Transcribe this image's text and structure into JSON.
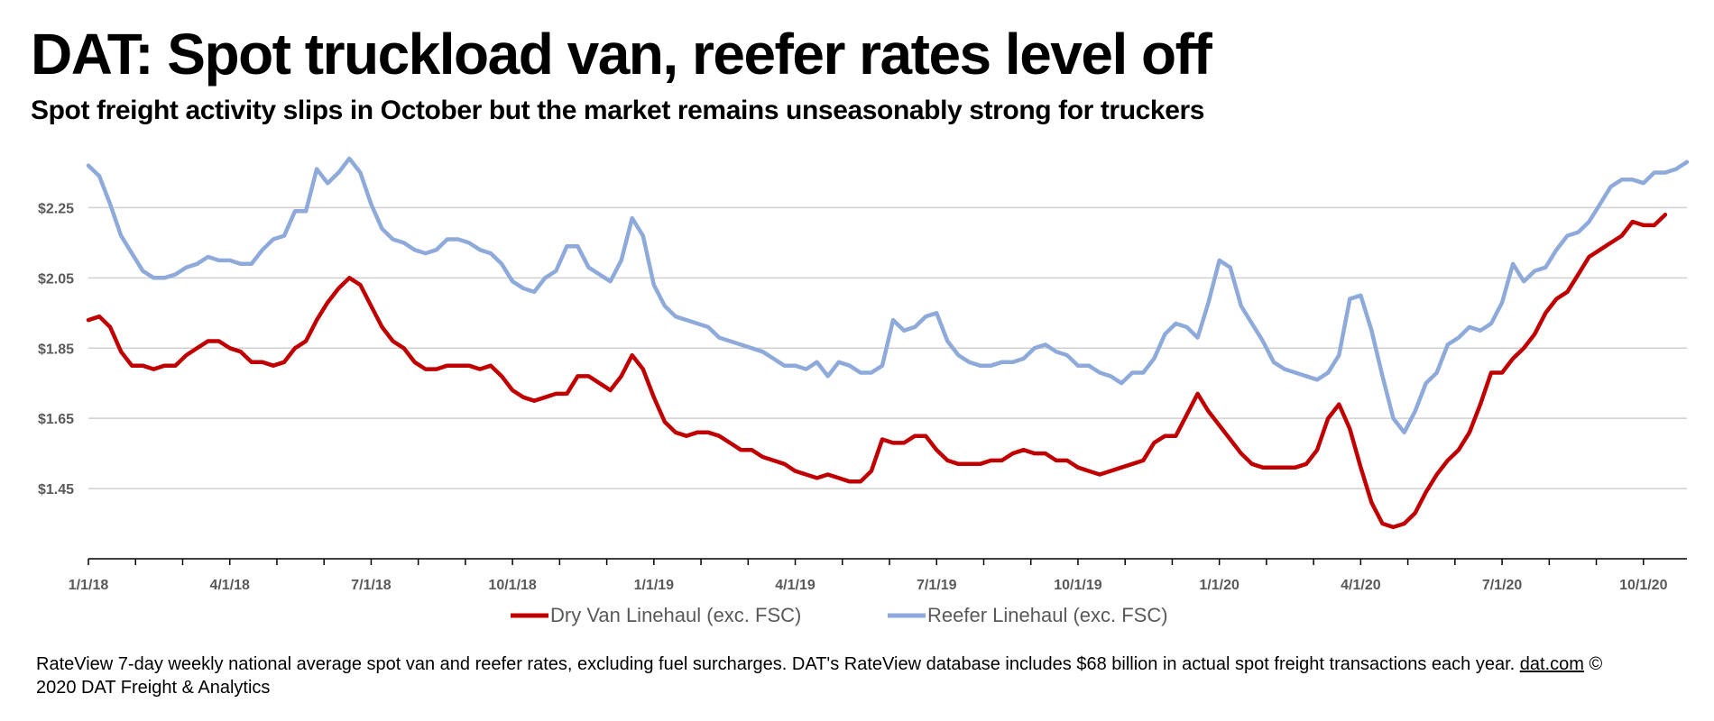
{
  "title": "DAT: Spot truckload van, reefer rates level off",
  "subtitle": "Spot freight activity slips in October but the market remains unseasonably strong for truckers",
  "footnote": {
    "text": "RateView 7-day weekly national average spot van and reefer rates, excluding fuel surcharges. DAT's RateView database includes $68 billion in actual spot freight transactions each year.",
    "link": "dat.com",
    "copyright": "© 2020 DAT Freight & Analytics"
  },
  "colors": {
    "dry_van": "#c00000",
    "reefer": "#8eaadb",
    "grid": "#d0d0d0",
    "axis": "#000000",
    "text": "#595959"
  },
  "chart_data": {
    "type": "line",
    "title": "DAT: Spot truckload van, reefer rates level off",
    "xlabel": "",
    "ylabel": "",
    "x_range": [
      0,
      147
    ],
    "ylim": [
      1.25,
      2.4
    ],
    "y_ticks": [
      "$1.45",
      "$1.65",
      "$1.85",
      "$2.05",
      "$2.25"
    ],
    "y_tick_values": [
      1.45,
      1.65,
      1.85,
      2.05,
      2.25
    ],
    "x_ticks": [
      "1/1/18",
      "4/1/18",
      "7/1/18",
      "10/1/18",
      "1/1/19",
      "4/1/19",
      "7/1/19",
      "10/1/19",
      "1/1/20",
      "4/1/20",
      "7/1/20",
      "10/1/20"
    ],
    "x_tick_weeks": [
      0,
      13,
      26,
      39,
      52,
      65,
      78,
      91,
      104,
      117,
      130,
      143
    ],
    "legend": "bottom-center",
    "series": [
      {
        "name": "Dry Van Linehaul (exc. FSC)",
        "color": "#c00000",
        "values": [
          1.93,
          1.94,
          1.91,
          1.84,
          1.8,
          1.8,
          1.79,
          1.8,
          1.8,
          1.83,
          1.85,
          1.87,
          1.87,
          1.85,
          1.84,
          1.81,
          1.81,
          1.8,
          1.81,
          1.85,
          1.87,
          1.93,
          1.98,
          2.02,
          2.05,
          2.03,
          1.97,
          1.91,
          1.87,
          1.85,
          1.81,
          1.79,
          1.79,
          1.8,
          1.8,
          1.8,
          1.79,
          1.8,
          1.77,
          1.73,
          1.71,
          1.7,
          1.71,
          1.72,
          1.72,
          1.77,
          1.77,
          1.75,
          1.73,
          1.77,
          1.83,
          1.79,
          1.71,
          1.64,
          1.61,
          1.6,
          1.61,
          1.61,
          1.6,
          1.58,
          1.56,
          1.56,
          1.54,
          1.53,
          1.52,
          1.5,
          1.49,
          1.48,
          1.49,
          1.48,
          1.47,
          1.47,
          1.5,
          1.59,
          1.58,
          1.58,
          1.6,
          1.6,
          1.56,
          1.53,
          1.52,
          1.52,
          1.52,
          1.53,
          1.53,
          1.55,
          1.56,
          1.55,
          1.55,
          1.53,
          1.53,
          1.51,
          1.5,
          1.49,
          1.5,
          1.51,
          1.52,
          1.53,
          1.58,
          1.6,
          1.6,
          1.66,
          1.72,
          1.67,
          1.63,
          1.59,
          1.55,
          1.52,
          1.51,
          1.51,
          1.51,
          1.51,
          1.52,
          1.56,
          1.65,
          1.69,
          1.62,
          1.51,
          1.41,
          1.35,
          1.34,
          1.35,
          1.38,
          1.44,
          1.49,
          1.53,
          1.56,
          1.61,
          1.69,
          1.78,
          1.78,
          1.82,
          1.85,
          1.89,
          1.95,
          1.99,
          2.01,
          2.06,
          2.11,
          2.13,
          2.15,
          2.17,
          2.21,
          2.2,
          2.2,
          2.23
        ]
      },
      {
        "name": "Reefer Linehaul (exc. FSC)",
        "color": "#8eaadb",
        "values": [
          2.37,
          2.34,
          2.26,
          2.17,
          2.12,
          2.07,
          2.05,
          2.05,
          2.06,
          2.08,
          2.09,
          2.11,
          2.1,
          2.1,
          2.09,
          2.09,
          2.13,
          2.16,
          2.17,
          2.24,
          2.24,
          2.36,
          2.32,
          2.35,
          2.39,
          2.35,
          2.26,
          2.19,
          2.16,
          2.15,
          2.13,
          2.12,
          2.13,
          2.16,
          2.16,
          2.15,
          2.13,
          2.12,
          2.09,
          2.04,
          2.02,
          2.01,
          2.05,
          2.07,
          2.14,
          2.14,
          2.08,
          2.06,
          2.04,
          2.1,
          2.22,
          2.17,
          2.03,
          1.97,
          1.94,
          1.93,
          1.92,
          1.91,
          1.88,
          1.87,
          1.86,
          1.85,
          1.84,
          1.82,
          1.8,
          1.8,
          1.79,
          1.81,
          1.77,
          1.81,
          1.8,
          1.78,
          1.78,
          1.8,
          1.93,
          1.9,
          1.91,
          1.94,
          1.95,
          1.87,
          1.83,
          1.81,
          1.8,
          1.8,
          1.81,
          1.81,
          1.82,
          1.85,
          1.86,
          1.84,
          1.83,
          1.8,
          1.8,
          1.78,
          1.77,
          1.75,
          1.78,
          1.78,
          1.82,
          1.89,
          1.92,
          1.91,
          1.88,
          1.98,
          2.1,
          2.08,
          1.97,
          1.92,
          1.87,
          1.81,
          1.79,
          1.78,
          1.77,
          1.76,
          1.78,
          1.83,
          1.99,
          2.0,
          1.9,
          1.77,
          1.65,
          1.61,
          1.67,
          1.75,
          1.78,
          1.86,
          1.88,
          1.91,
          1.9,
          1.92,
          1.98,
          2.09,
          2.04,
          2.07,
          2.08,
          2.13,
          2.17,
          2.18,
          2.21,
          2.26,
          2.31,
          2.33,
          2.33,
          2.32,
          2.35,
          2.35,
          2.36,
          2.38
        ]
      }
    ]
  }
}
